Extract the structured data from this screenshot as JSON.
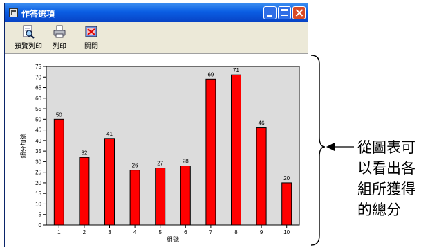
{
  "window": {
    "title": "作答選項",
    "controls": {
      "minimize": "minimize",
      "maximize": "maximize",
      "close": "close"
    }
  },
  "toolbar": {
    "items": [
      {
        "label": "預覽列印",
        "icon": "print-preview-icon"
      },
      {
        "label": "列印",
        "icon": "printer-icon"
      },
      {
        "label": "關閉",
        "icon": "close-window-icon"
      }
    ]
  },
  "chart_data": {
    "type": "bar",
    "categories": [
      "1",
      "2",
      "3",
      "4",
      "5",
      "6",
      "7",
      "8",
      "9",
      "10"
    ],
    "values": [
      50,
      32,
      41,
      26,
      27,
      28,
      69,
      71,
      46,
      20
    ],
    "title": "",
    "xlabel": "組號",
    "ylabel": "組分加總",
    "ylim": [
      0,
      75
    ],
    "yticks": [
      0,
      5,
      10,
      15,
      20,
      25,
      30,
      35,
      40,
      45,
      50,
      55,
      60,
      65,
      70,
      75
    ],
    "grid": false,
    "bar_color": "#ff0000",
    "plot_background": "#dcdcdc",
    "data_labels": true
  },
  "annotation": {
    "lines": [
      "從圖表可",
      "以看出各",
      "組所獲得",
      "的總分"
    ]
  }
}
